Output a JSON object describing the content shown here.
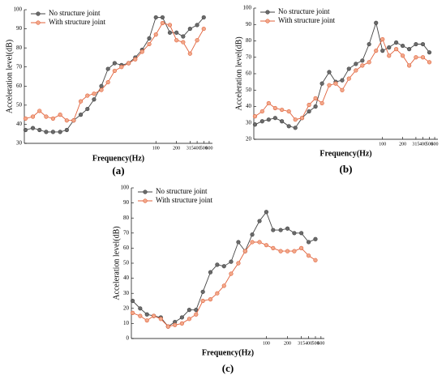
{
  "chart_data": [
    {
      "type": "line",
      "label": "(a)",
      "xlabel": "Frequency(Hz)",
      "ylabel": "Acceleration level(dB)",
      "xscale": "log",
      "x": [
        1.25,
        1.6,
        2,
        2.5,
        3.15,
        4,
        5,
        6.3,
        8,
        10,
        12.5,
        16,
        20,
        25,
        31.5,
        40,
        50,
        63,
        80,
        100,
        125,
        160,
        200,
        250,
        315,
        400,
        500
      ],
      "xlim": [
        1.2,
        670
      ],
      "xticks": [
        100,
        200,
        315,
        400,
        500,
        600
      ],
      "ylim": [
        30,
        100
      ],
      "yticks": [
        30,
        40,
        50,
        60,
        70,
        80,
        90,
        100
      ],
      "legend": "upper left",
      "series": [
        {
          "name": "No structure joint",
          "color": "#444444",
          "values": [
            37,
            38,
            37,
            36,
            36,
            36,
            37,
            42,
            45,
            48,
            53,
            60,
            69,
            72,
            71,
            72,
            75,
            79,
            85,
            96,
            96,
            88,
            88,
            86,
            90,
            92,
            96
          ]
        },
        {
          "name": "With structure joint",
          "color": "#e0603a",
          "values": [
            43,
            44,
            47,
            44,
            43,
            45,
            42,
            42,
            52,
            55,
            56,
            58,
            62,
            68,
            70,
            72,
            74,
            78,
            82,
            87,
            93,
            92,
            84,
            83,
            77,
            84,
            90
          ]
        }
      ]
    },
    {
      "type": "line",
      "label": "(b)",
      "xlabel": "Frequency(Hz)",
      "ylabel": "Acceleration level(dB)",
      "xscale": "log",
      "x": [
        1.25,
        1.6,
        2,
        2.5,
        3.15,
        4,
        5,
        6.3,
        8,
        10,
        12.5,
        16,
        20,
        25,
        31.5,
        40,
        50,
        63,
        80,
        100,
        125,
        160,
        200,
        250,
        315,
        400,
        500
      ],
      "xlim": [
        1.2,
        670
      ],
      "xticks": [
        100,
        200,
        315,
        400,
        500,
        600
      ],
      "ylim": [
        20,
        100
      ],
      "yticks": [
        20,
        30,
        40,
        50,
        60,
        70,
        80,
        90,
        100
      ],
      "legend": "upper left",
      "series": [
        {
          "name": "No structure joint",
          "color": "#444444",
          "values": [
            29,
            31,
            32,
            33,
            31,
            28,
            27,
            33,
            37,
            40,
            54,
            61,
            55,
            56,
            63,
            66,
            68,
            78,
            91,
            74,
            76,
            79,
            77,
            75,
            78,
            78,
            73
          ]
        },
        {
          "name": "With structure joint",
          "color": "#e0603a",
          "values": [
            34,
            37,
            42,
            39,
            38,
            37,
            32,
            33,
            41,
            45,
            42,
            53,
            54,
            50,
            57,
            62,
            65,
            67,
            74,
            81,
            71,
            75,
            71,
            65,
            70,
            70,
            67
          ]
        }
      ]
    },
    {
      "type": "line",
      "label": "(c)",
      "xlabel": "Frequency(Hz)",
      "ylabel": "Acceleration level(dB)",
      "xscale": "log",
      "x": [
        1.25,
        1.6,
        2,
        2.5,
        3.15,
        4,
        5,
        6.3,
        8,
        10,
        12.5,
        16,
        20,
        25,
        31.5,
        40,
        50,
        63,
        80,
        100,
        125,
        160,
        200,
        250,
        315,
        400,
        500
      ],
      "xlim": [
        1.2,
        670
      ],
      "xticks": [
        100,
        200,
        315,
        400,
        500,
        600
      ],
      "ylim": [
        0,
        100
      ],
      "yticks": [
        0,
        10,
        20,
        30,
        40,
        50,
        60,
        70,
        80,
        90,
        100
      ],
      "legend": "upper left",
      "series": [
        {
          "name": "No structure joint",
          "color": "#444444",
          "values": [
            25,
            20,
            16,
            15,
            14,
            8,
            11,
            14,
            19,
            19,
            31,
            44,
            49,
            48,
            51,
            64,
            58,
            69,
            78,
            84,
            72,
            72,
            73,
            70,
            70,
            64,
            66
          ]
        },
        {
          "name": "With structure joint",
          "color": "#e0603a",
          "values": [
            17,
            15,
            12,
            15,
            13,
            8,
            9,
            10,
            13,
            16,
            25,
            26,
            30,
            35,
            43,
            50,
            58,
            64,
            64,
            62,
            60,
            58,
            58,
            58,
            60,
            55,
            52
          ]
        }
      ]
    }
  ]
}
